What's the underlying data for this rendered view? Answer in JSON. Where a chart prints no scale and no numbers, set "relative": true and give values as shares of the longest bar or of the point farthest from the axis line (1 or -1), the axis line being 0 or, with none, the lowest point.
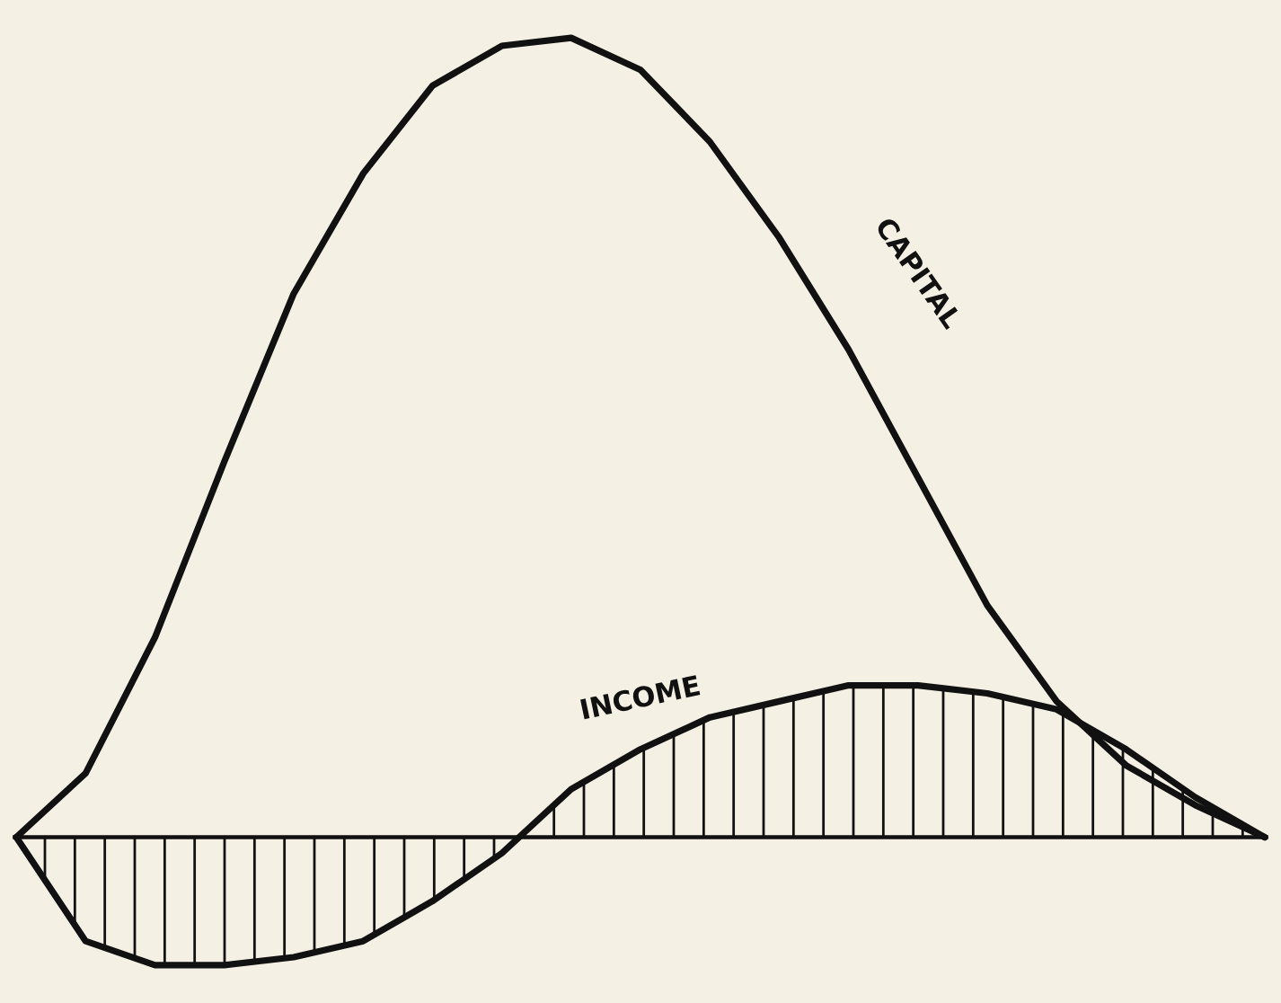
{
  "chart_data": {
    "type": "line",
    "relative": true,
    "legend": false,
    "marker": "none",
    "line_style": "solid",
    "tick_labels": false,
    "categories": [
      null,
      null,
      null,
      null,
      null,
      null,
      null,
      null,
      null,
      null,
      null,
      null,
      null,
      null,
      null,
      null,
      null,
      null,
      null
    ],
    "series": [
      {
        "name": "CAPITAL",
        "color": "#111111",
        "values": [
          0,
          0.08,
          0.25,
          0.47,
          0.68,
          0.83,
          0.94,
          0.99,
          1,
          0.96,
          0.87,
          0.75,
          0.61,
          0.45,
          0.29,
          0.17,
          0.09,
          0.04,
          0
        ]
      },
      {
        "name": "INCOME",
        "type": "area",
        "color": "#111111",
        "values": [
          0,
          -0.13,
          -0.16,
          -0.16,
          -0.15,
          -0.13,
          -0.08,
          -0.02,
          0.06,
          0.11,
          0.15,
          0.17,
          0.19,
          0.19,
          0.18,
          0.16,
          0.11,
          0.05,
          0
        ]
      }
    ]
  }
}
